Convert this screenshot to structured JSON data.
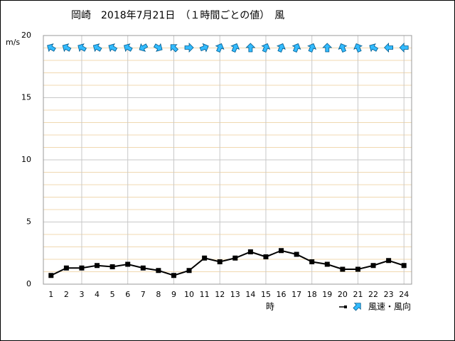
{
  "chart_data": {
    "type": "line",
    "title": "岡崎　2018年7月21日　（１時間ごとの値）　風",
    "y_label": "m/s",
    "x_label": "時",
    "legend_label": "風速・風向",
    "x": [
      1,
      2,
      3,
      4,
      5,
      6,
      7,
      8,
      9,
      10,
      11,
      12,
      13,
      14,
      15,
      16,
      17,
      18,
      19,
      20,
      21,
      22,
      23,
      24
    ],
    "series": [
      {
        "name": "風速",
        "color": "#000000",
        "values": [
          0.7,
          1.3,
          1.3,
          1.5,
          1.4,
          1.6,
          1.3,
          1.1,
          0.7,
          1.1,
          2.1,
          1.8,
          2.1,
          2.6,
          2.2,
          2.7,
          2.4,
          1.8,
          1.6,
          1.2,
          1.2,
          1.5,
          1.9,
          1.5
        ]
      }
    ],
    "wind_arrow_deg": [
      300,
      300,
      300,
      300,
      300,
      300,
      240,
      120,
      315,
      90,
      67.5,
      22.5,
      22.5,
      0,
      22.5,
      22.5,
      22.5,
      22.5,
      0,
      337.5,
      337.5,
      300,
      270,
      270
    ],
    "arrow_color": "#33bbff",
    "xlim": [
      0.5,
      24.5
    ],
    "xticks": [
      1,
      2,
      3,
      4,
      5,
      6,
      7,
      8,
      9,
      10,
      11,
      12,
      13,
      14,
      15,
      16,
      17,
      18,
      19,
      20,
      21,
      22,
      23,
      24
    ],
    "x_grid": [
      3,
      6,
      9,
      12,
      15,
      18,
      21,
      24
    ],
    "ylim": [
      0,
      20
    ],
    "yticks": [
      0,
      5,
      10,
      15,
      20
    ],
    "y_minor_ticks": [
      1,
      2,
      3,
      4,
      6,
      7,
      8,
      9,
      11,
      12,
      13,
      14,
      16,
      17,
      18,
      19
    ],
    "grid": true
  }
}
